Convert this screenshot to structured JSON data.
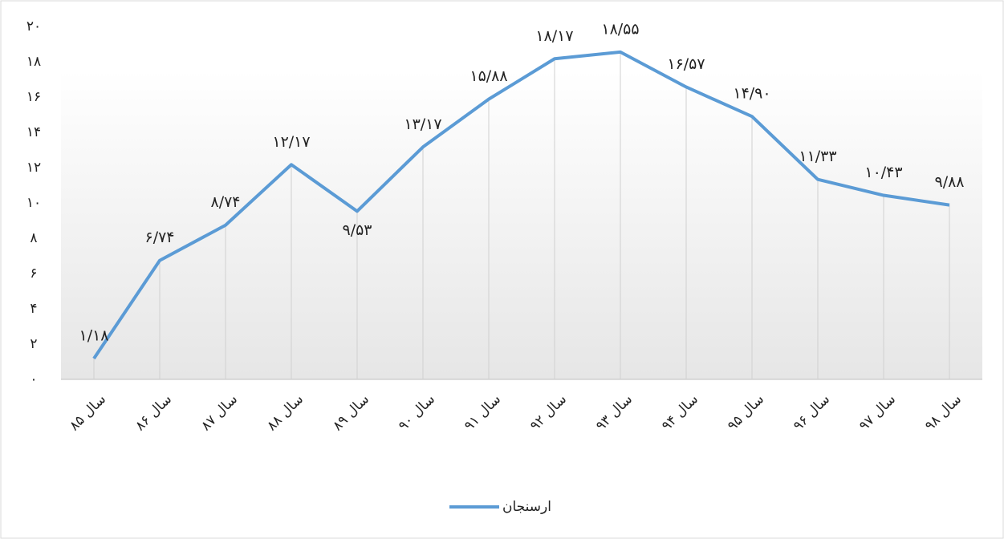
{
  "chart_data": {
    "type": "line",
    "categories": [
      "سال ۸۵",
      "سال ۸۶",
      "سال ۸۷",
      "سال ۸۸",
      "سال ۸۹",
      "سال ۹۰",
      "سال ۹۱",
      "سال ۹۲",
      "سال ۹۳",
      "سال ۹۴",
      "سال ۹۵",
      "سال ۹۶",
      "سال ۹۷",
      "سال ۹۸"
    ],
    "series": [
      {
        "name": "ارسنجان",
        "color": "#5b9bd5",
        "values": [
          1.18,
          6.74,
          8.74,
          12.17,
          9.53,
          13.17,
          15.88,
          18.17,
          18.55,
          16.57,
          14.9,
          11.33,
          10.43,
          9.88
        ],
        "value_labels": [
          "۱/۱۸",
          "۶/۷۴",
          "۸/۷۴",
          "۱۲/۱۷",
          "۹/۵۳",
          "۱۳/۱۷",
          "۱۵/۸۸",
          "۱۸/۱۷",
          "۱۸/۵۵",
          "۱۶/۵۷",
          "۱۴/۹۰",
          "۱۱/۳۳",
          "۱۰/۴۳",
          "۹/۸۸"
        ]
      }
    ],
    "ylim": [
      0,
      20
    ],
    "yticks": [
      {
        "value": 0,
        "label": "۰"
      },
      {
        "value": 2,
        "label": "۲"
      },
      {
        "value": 4,
        "label": "۴"
      },
      {
        "value": 6,
        "label": "۶"
      },
      {
        "value": 8,
        "label": "۸"
      },
      {
        "value": 10,
        "label": "۱۰"
      },
      {
        "value": 12,
        "label": "۱۲"
      },
      {
        "value": 14,
        "label": "۱۴"
      },
      {
        "value": 16,
        "label": "۱۶"
      },
      {
        "value": 18,
        "label": "۱۸"
      },
      {
        "value": 20,
        "label": "۲۰"
      }
    ],
    "legend": "bottom"
  }
}
